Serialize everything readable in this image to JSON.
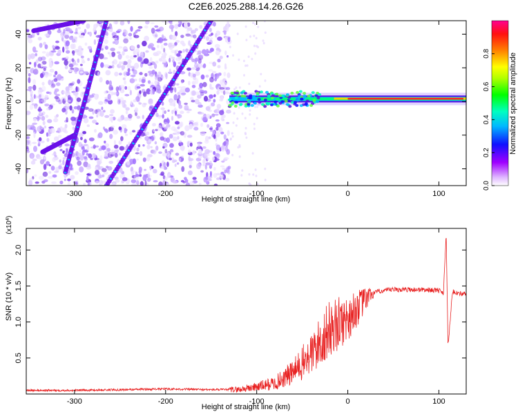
{
  "figure_title": "C2E6.2025.288.14.26.G26",
  "chart_data": [
    {
      "type": "heatmap",
      "title": "C2E6.2025.288.14.26.G26",
      "xlabel": "Height of straight line (km)",
      "ylabel": "Frequency (Hz)",
      "xlim": [
        -353,
        130
      ],
      "ylim": [
        -50,
        48
      ],
      "x_ticks": [
        -300,
        -200,
        -100,
        0,
        100
      ],
      "x_tick_labels": [
        "-300",
        "-200",
        "-100",
        "0",
        "100"
      ],
      "y_ticks": [
        -40,
        -20,
        0,
        20,
        40
      ],
      "y_tick_labels": [
        "-40",
        "-20",
        "0",
        "20",
        "40"
      ],
      "colorbar": {
        "label": "Normalized spectral amplitude",
        "range": [
          0,
          1
        ],
        "ticks": [
          0.0,
          0.2,
          0.4,
          0.6,
          0.8
        ],
        "tick_labels": [
          "0.0",
          "0.2",
          "0.4",
          "0.6",
          "0.8"
        ],
        "colors": [
          "#ffffff",
          "#a000ff",
          "#0000ff",
          "#00e5ff",
          "#00ff00",
          "#ffff00",
          "#ff8000",
          "#ff0000",
          "#ff0080"
        ]
      },
      "features": {
        "noise_region_x": [
          -353,
          -130
        ],
        "diagonal_streaks": [
          {
            "x": [
              -310,
              -265
            ],
            "y": [
              -42,
              48
            ]
          },
          {
            "x": [
              -345,
              -290
            ],
            "y": [
              42,
              48
            ]
          },
          {
            "x": [
              -265,
              -150
            ],
            "y": [
              -50,
              48
            ]
          },
          {
            "x": [
              -335,
              -300
            ],
            "y": [
              -30,
              -20
            ]
          }
        ],
        "carrier_band": {
          "x": [
            -130,
            130
          ],
          "y": 1.5,
          "peak_from_x": 0
        }
      }
    },
    {
      "type": "line",
      "xlabel": "Height of straight line (km)",
      "ylabel": "SNR (10 * v/v)",
      "multiplier_label": "(x10",
      "multiplier_exponent": "4",
      "multiplier_close": ")",
      "xlim": [
        -353,
        130
      ],
      "ylim": [
        0,
        2.3
      ],
      "x_ticks": [
        -300,
        -200,
        -100,
        0,
        100
      ],
      "x_tick_labels": [
        "-300",
        "-200",
        "-100",
        "0",
        "100"
      ],
      "y_ticks": [
        0.5,
        1.0,
        1.5,
        2.0
      ],
      "y_tick_labels": [
        "0.5",
        "1.0",
        "1.5",
        "2.0"
      ],
      "series": [
        {
          "name": "SNR",
          "color": "#e82020",
          "x": [
            -353,
            -300,
            -250,
            -200,
            -150,
            -120,
            -100,
            -80,
            -60,
            -40,
            -20,
            0,
            15,
            25,
            35,
            50,
            80,
            100,
            105,
            108,
            110,
            115,
            130
          ],
          "y": [
            0.05,
            0.05,
            0.06,
            0.07,
            0.06,
            0.06,
            0.1,
            0.15,
            0.3,
            0.55,
            0.9,
            1.05,
            1.25,
            1.38,
            1.43,
            1.45,
            1.45,
            1.44,
            1.4,
            2.25,
            0.65,
            1.42,
            1.38
          ]
        }
      ]
    }
  ]
}
